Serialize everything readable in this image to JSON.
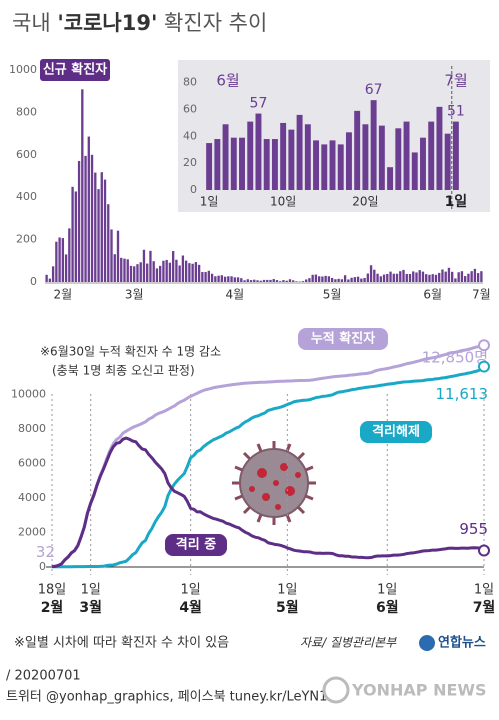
{
  "title": [
    "국내 ",
    "'코로나19'",
    " 확진자 추이"
  ],
  "chart_data": [
    {
      "type": "bar",
      "label": "신규 확진자",
      "color": "#6b3e91",
      "ylim": [
        0,
        1000
      ],
      "yticks": [
        0,
        200,
        400,
        600,
        800,
        1000
      ],
      "categories": [
        null,
        null,
        null,
        null,
        null,
        "2월",
        null,
        null,
        null,
        null,
        null,
        null,
        null,
        null,
        null,
        null,
        null,
        null,
        null,
        null,
        null,
        null,
        null,
        null,
        null,
        null,
        null,
        "3월",
        null,
        null,
        null,
        null,
        null,
        null,
        null,
        null,
        null,
        null,
        null,
        null,
        null,
        null,
        null,
        null,
        null,
        null,
        null,
        null,
        null,
        null,
        null,
        null,
        null,
        null,
        null,
        null,
        null,
        null,
        "4월",
        null,
        null,
        null,
        null,
        null,
        null,
        null,
        null,
        null,
        null,
        null,
        null,
        null,
        null,
        null,
        null,
        null,
        null,
        null,
        null,
        null,
        null,
        null,
        null,
        null,
        null,
        null,
        null,
        null,
        "5월",
        null,
        null,
        null,
        null,
        null,
        null,
        null,
        null,
        null,
        null,
        null,
        null,
        null,
        null,
        null,
        null,
        null,
        null,
        null,
        null,
        null,
        null,
        null,
        null,
        null,
        null,
        null,
        null,
        null,
        null,
        "6월",
        null,
        null,
        null,
        null,
        null,
        null,
        null,
        null,
        null,
        null,
        null,
        null,
        null,
        null,
        "7월"
      ],
      "values": [
        34,
        16,
        74,
        190,
        210,
        207,
        130,
        253,
        449,
        427,
        571,
        909,
        595,
        686,
        600,
        516,
        438,
        518,
        483,
        367,
        248,
        131,
        242,
        114,
        110,
        107,
        76,
        74,
        84,
        93,
        152,
        87,
        147,
        98,
        64,
        76,
        100,
        104,
        91,
        146,
        105,
        78,
        125,
        101,
        89,
        86,
        94,
        81,
        47,
        47,
        53,
        39,
        27,
        30,
        32,
        25,
        27,
        27,
        22,
        22,
        18,
        8,
        13,
        9,
        11,
        8,
        6,
        10,
        10,
        10,
        14,
        9,
        4,
        9,
        6,
        13,
        8,
        3,
        2,
        4,
        12,
        18,
        34,
        35,
        27,
        26,
        29,
        27,
        19,
        13,
        15,
        13,
        32,
        12,
        20,
        23,
        25,
        16,
        19,
        40,
        79,
        58,
        39,
        27,
        35,
        38,
        49,
        39,
        39,
        51,
        57,
        38,
        38,
        50,
        45,
        56,
        49,
        37,
        34,
        37,
        34,
        43,
        59,
        49,
        67,
        48,
        17,
        46,
        51,
        28,
        39,
        51,
        62,
        42,
        51
      ]
    },
    {
      "type": "bar",
      "annotations": [
        "6월",
        "7월"
      ],
      "color": "#6b3e91",
      "ylim": [
        0,
        85
      ],
      "yticks": [
        0,
        20,
        40,
        60,
        80
      ],
      "categories": [
        "1일",
        null,
        null,
        null,
        null,
        null,
        null,
        null,
        null,
        "10일",
        null,
        null,
        null,
        null,
        null,
        null,
        null,
        null,
        null,
        "20일",
        null,
        null,
        null,
        null,
        null,
        null,
        null,
        null,
        null,
        null,
        "1일"
      ],
      "values": [
        35,
        38,
        49,
        39,
        39,
        51,
        57,
        38,
        38,
        50,
        45,
        56,
        49,
        37,
        34,
        37,
        34,
        43,
        59,
        49,
        67,
        48,
        17,
        46,
        51,
        28,
        39,
        51,
        62,
        42,
        51
      ],
      "value_labels": {
        "6": "57",
        "20": "67",
        "30": "51"
      }
    },
    {
      "type": "line",
      "notes": [
        "※6월30일 누적 확진자 수 1명 감소",
        "(충북 1명 최종 오신고 판정)"
      ],
      "ylim": [
        0,
        13500
      ],
      "yticks": [
        0,
        2000,
        4000,
        6000,
        8000,
        10000
      ],
      "categories": [
        {
          "day": "18일",
          "month": "2월"
        },
        null,
        null,
        null,
        null,
        null,
        null,
        null,
        null,
        null,
        null,
        null,
        {
          "day": "1일",
          "month": "3월"
        },
        null,
        null,
        null,
        null,
        null,
        null,
        null,
        null,
        null,
        null,
        null,
        null,
        null,
        null,
        null,
        null,
        null,
        null,
        null,
        null,
        null,
        null,
        null,
        null,
        null,
        null,
        null,
        null,
        null,
        null,
        {
          "day": "1일",
          "month": "4월"
        },
        null,
        null,
        null,
        null,
        null,
        null,
        null,
        null,
        null,
        null,
        null,
        null,
        null,
        null,
        null,
        null,
        null,
        null,
        null,
        null,
        null,
        null,
        null,
        null,
        null,
        null,
        null,
        null,
        null,
        {
          "day": "1일",
          "month": "5월"
        },
        null,
        null,
        null,
        null,
        null,
        null,
        null,
        null,
        null,
        null,
        null,
        null,
        null,
        null,
        null,
        null,
        null,
        null,
        null,
        null,
        null,
        null,
        null,
        null,
        null,
        null,
        null,
        null,
        null,
        null,
        {
          "day": "1일",
          "month": "6월"
        },
        null,
        null,
        null,
        null,
        null,
        null,
        null,
        null,
        null,
        null,
        null,
        null,
        null,
        null,
        null,
        null,
        null,
        null,
        null,
        null,
        null,
        null,
        null,
        null,
        null,
        null,
        null,
        null,
        null,
        {
          "day": "1일",
          "month": "7월"
        }
      ],
      "series": [
        {
          "name": "누적 확진자",
          "color": "#b5a2d8",
          "value_labels": {
            "0": "32",
            "134": "12,850명"
          },
          "values": [
            32,
            51,
            104,
            204,
            433,
            602,
            833,
            977,
            1261,
            1766,
            2337,
            3150,
            3736,
            4212,
            4812,
            5328,
            5766,
            6284,
            6767,
            7134,
            7382,
            7513,
            7755,
            7869,
            7979,
            8086,
            8162,
            8236,
            8320,
            8413,
            8565,
            8652,
            8799,
            8897,
            8961,
            9037,
            9137,
            9241,
            9332,
            9478,
            9583,
            9661,
            9786,
            9887,
            9976,
            10062,
            10156,
            10237,
            10284,
            10331,
            10384,
            10423,
            10450,
            10480,
            10512,
            10537,
            10564,
            10591,
            10613,
            10635,
            10653,
            10661,
            10674,
            10683,
            10694,
            10702,
            10708,
            10718,
            10728,
            10738,
            10752,
            10761,
            10765,
            10774,
            10780,
            10793,
            10801,
            10804,
            10806,
            10810,
            10822,
            10840,
            10874,
            10909,
            10936,
            10962,
            10991,
            11018,
            11037,
            11050,
            11065,
            11078,
            11110,
            11122,
            11142,
            11165,
            11190,
            11206,
            11225,
            11265,
            11344,
            11402,
            11441,
            11468,
            11503,
            11541,
            11590,
            11629,
            11668,
            11719,
            11776,
            11814,
            11852,
            11902,
            11947,
            12003,
            12051,
            12085,
            12121,
            12155,
            12198,
            12257,
            12306,
            12373,
            12421,
            12438,
            12484,
            12535,
            12563,
            12602,
            12653,
            12715,
            12757,
            12800,
            12850
          ]
        },
        {
          "name": "격리해제",
          "color": "#1aa8c7",
          "value_labels": {
            "134": "11,613"
          },
          "values": [
            12,
            16,
            16,
            16,
            17,
            18,
            18,
            22,
            22,
            24,
            24,
            27,
            30,
            30,
            30,
            34,
            41,
            88,
            108,
            118,
            166,
            247,
            288,
            333,
            510,
            714,
            834,
            1137,
            1407,
            1540,
            1947,
            2233,
            2612,
            2909,
            3166,
            3507,
            4144,
            4528,
            4811,
            5033,
            5228,
            5408,
            5828,
            6325,
            6463,
            6694,
            6776,
            6973,
            7117,
            7243,
            7368,
            7447,
            7534,
            7616,
            7757,
            7829,
            7937,
            8042,
            8114,
            8277,
            8411,
            8501,
            8635,
            8717,
            8764,
            8854,
            8922,
            9072,
            9123,
            9183,
            9217,
            9267,
            9333,
            9419,
            9484,
            9568,
            9610,
            9632,
            9664,
            9671,
            9695,
            9762,
            9821,
            9847,
            9888,
            9904,
            9938,
            9975,
            10066,
            10135,
            10152,
            10194,
            10226,
            10275,
            10295,
            10340,
            10363,
            10398,
            10422,
            10447,
            10467,
            10496,
            10531,
            10552,
            10589,
            10611,
            10629,
            10667,
            10692,
            10718,
            10730,
            10740,
            10760,
            10774,
            10787,
            10800,
            10835,
            10856,
            10867,
            10898,
            10917,
            10952,
            10974,
            11009,
            11049,
            11076,
            11123,
            11158,
            11186,
            11234,
            11264,
            11317,
            11364,
            11429,
            11613
          ]
        },
        {
          "name": "격리 중",
          "color": "#5e2d86",
          "value_labels": {
            "134": "955"
          },
          "values": [
            20,
            35,
            88,
            187,
            414,
            579,
            808,
            945,
            1227,
            1729,
            2297,
            3106,
            3689,
            4160,
            4754,
            5262,
            5690,
            6154,
            6615,
            6966,
            7165,
            7212,
            7407,
            7470,
            7402,
            7300,
            7253,
            7024,
            6832,
            6789,
            6527,
            6325,
            6085,
            5884,
            5684,
            5410,
            4867,
            4582,
            4382,
            4301,
            4203,
            4095,
            3796,
            3397,
            3344,
            3194,
            3203,
            3081,
            2981,
            2896,
            2816,
            2772,
            2708,
            2653,
            2541,
            2491,
            2405,
            2324,
            2270,
            2128,
            2010,
            1926,
            1803,
            1729,
            1692,
            1608,
            1546,
            1406,
            1363,
            1312,
            1291,
            1248,
            1185,
            1107,
            1046,
            975,
            939,
            918,
            887,
            884,
            871,
            822,
            797,
            806,
            792,
            799,
            793,
            783,
            709,
            653,
            650,
            621,
            621,
            583,
            583,
            561,
            561,
            541,
            536,
            549,
            608,
            637,
            641,
            646,
            643,
            658,
            688,
            689,
            703,
            728,
            773,
            801,
            816,
            852,
            884,
            926,
            939,
            952,
            977,
            979,
            1002,
            1026,
            1052,
            1084,
            1092,
            1082,
            1081,
            1096,
            1096,
            1087,
            1108,
            1116,
            1111,
            1089,
            955
          ]
        }
      ]
    }
  ],
  "footer": {
    "note": "※일별 시차에 따라 확진자 수 차이 있음",
    "source": "자료/ 질병관리본부",
    "logo": "연합뉴스",
    "date": "/ 20200701",
    "sns": "트위터 @yonhap_graphics, 페이스북 tuney.kr/LeYN1",
    "watermark": "YONHAP NEWS"
  }
}
